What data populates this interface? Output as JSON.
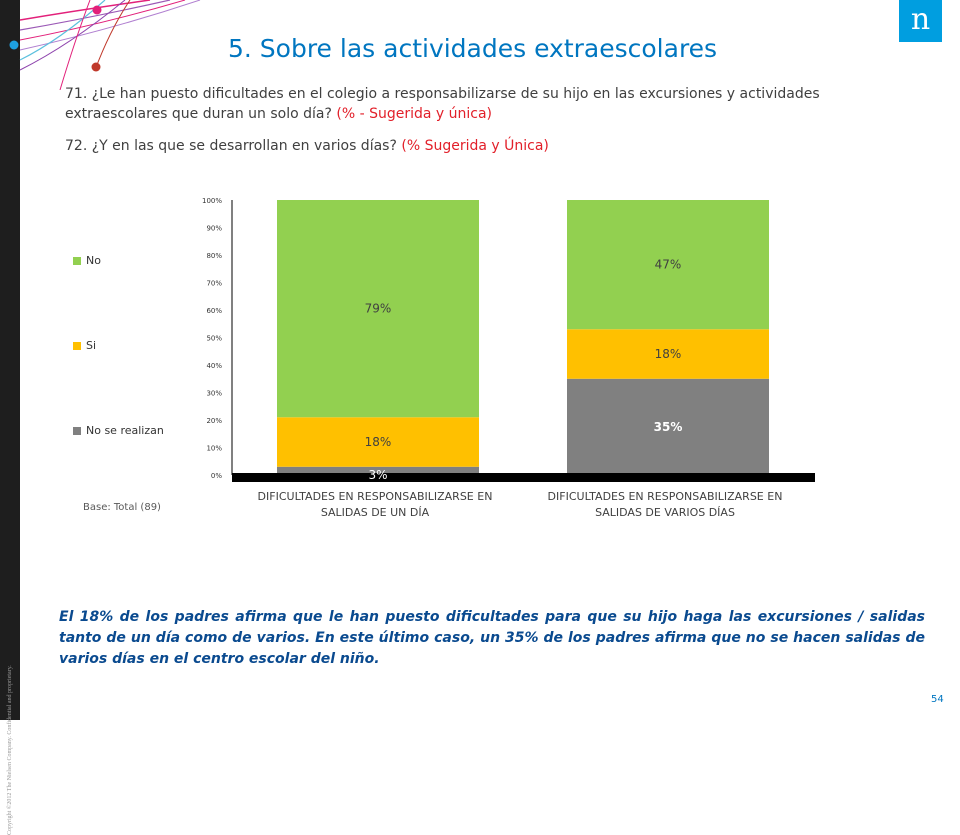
{
  "header": {
    "title": "5. Sobre las actividades extraescolares",
    "logo_letter": "n"
  },
  "questions": {
    "q71_text": "71. ¿Le han puesto dificultades en el colegio a responsabilizarse de su hijo en las excursiones y actividades extraescolares que duran un solo día?",
    "q71_note": "(% - Sugerida y única)",
    "q72_text": "72. ¿Y en las que se desarrollan en varios días?",
    "q72_note": "(% Sugerida y Única)"
  },
  "chart_data": {
    "type": "bar",
    "stacked": true,
    "categories": [
      "DIFICULTADES EN RESPONSABILIZARSE EN SALIDAS DE UN DÍA",
      "DIFICULTADES EN RESPONSABILIZARSE EN SALIDAS DE VARIOS DÍAS"
    ],
    "category_lines": [
      [
        "DIFICULTADES EN RESPONSABILIZARSE EN",
        "SALIDAS DE UN DÍA"
      ],
      [
        "DIFICULTADES EN RESPONSABILIZARSE EN",
        "SALIDAS DE VARIOS DÍAS"
      ]
    ],
    "series": [
      {
        "name": "No se realizan",
        "values": [
          3,
          35
        ],
        "labels": [
          "3%",
          "35%"
        ],
        "color": "#808080"
      },
      {
        "name": "Si",
        "values": [
          18,
          18
        ],
        "labels": [
          "18%",
          "18%"
        ],
        "color": "#ffc000"
      },
      {
        "name": "No",
        "values": [
          79,
          47
        ],
        "labels": [
          "79%",
          "47%"
        ],
        "color": "#92d050"
      }
    ],
    "legend_order": [
      "No",
      "Si",
      "No se realizan"
    ],
    "yticks": [
      "0%",
      "10%",
      "20%",
      "30%",
      "40%",
      "50%",
      "60%",
      "70%",
      "80%",
      "90%",
      "100%"
    ],
    "ylim": [
      0,
      100
    ],
    "legend_position": "left",
    "grid": false
  },
  "base_note": "Base: Total (89)",
  "summary": "El 18% de los padres afirma que le han puesto dificultades para que su hijo haga las excursiones / salidas tanto de un día como de varios. En este último caso, un 35% de los padres afirma que no se hacen salidas de varios días en el centro escolar del niño.",
  "footer": {
    "copyright": "Copyright ©2012 The Nielsen Company. Confidential and proprietary.",
    "page_number": "54"
  }
}
